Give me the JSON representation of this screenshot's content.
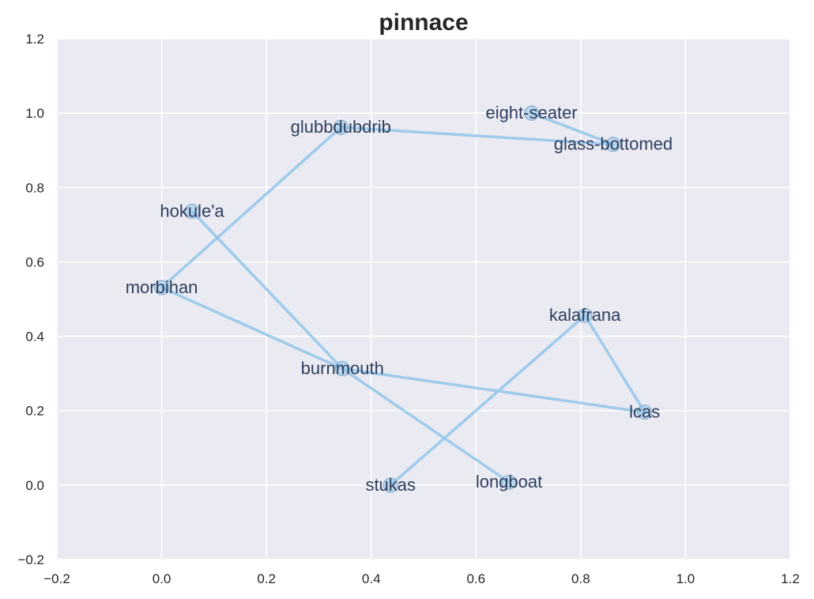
{
  "chart_data": {
    "type": "line",
    "title": "pinnace",
    "xlabel": "",
    "ylabel": "",
    "xlim": [
      -0.2,
      1.2
    ],
    "ylim": [
      -0.2,
      1.2
    ],
    "xticks": [
      "−0.2",
      "0.0",
      "0.2",
      "0.4",
      "0.6",
      "0.8",
      "1.0",
      "1.2"
    ],
    "yticks": [
      "−0.2",
      "0.0",
      "0.2",
      "0.4",
      "0.6",
      "0.8",
      "1.0",
      "1.2"
    ],
    "xtick_values": [
      -0.2,
      0.0,
      0.2,
      0.4,
      0.6,
      0.8,
      1.0,
      1.2
    ],
    "ytick_values": [
      -0.2,
      0.0,
      0.2,
      0.4,
      0.6,
      0.8,
      1.0,
      1.2
    ],
    "grid": true,
    "background": "#eaeaf2",
    "line_color": "#92c5ea",
    "points": [
      {
        "label": "stukas",
        "x": 0.437,
        "y": 0.0
      },
      {
        "label": "kalafrana",
        "x": 0.808,
        "y": 0.456
      },
      {
        "label": "lcas",
        "x": 0.922,
        "y": 0.196
      },
      {
        "label": "burnmouth",
        "x": 0.345,
        "y": 0.313
      },
      {
        "label": "morbihan",
        "x": 0.0,
        "y": 0.531
      },
      {
        "label": "glubbdubdrib",
        "x": 0.342,
        "y": 0.962
      },
      {
        "label": "glass-bottomed",
        "x": 0.862,
        "y": 0.916
      },
      {
        "label": "eight-seater",
        "x": 0.706,
        "y": 1.0
      },
      {
        "label": "hokule'a",
        "x": 0.058,
        "y": 0.736
      },
      {
        "label": "longboat",
        "x": 0.663,
        "y": 0.008
      }
    ],
    "path_order": [
      "stukas",
      "kalafrana",
      "lcas",
      "burnmouth",
      "morbihan",
      "glubbdubdrib",
      "glass-bottomed",
      "eight-seater"
    ],
    "path2_order": [
      "hokule'a",
      "burnmouth",
      "longboat"
    ]
  }
}
